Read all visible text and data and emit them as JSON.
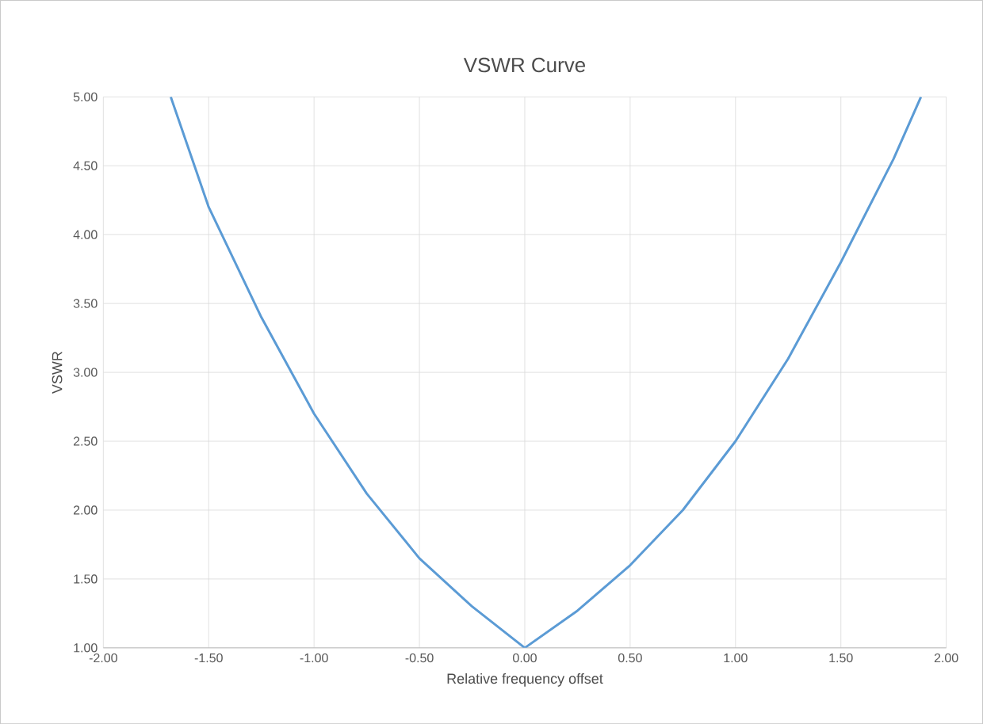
{
  "chart_data": {
    "type": "line",
    "title": "VSWR Curve",
    "xlabel": "Relative frequency offset",
    "ylabel": "VSWR",
    "xlim": [
      -2,
      2
    ],
    "xticks": [
      {
        "value": -2,
        "label": "-2.00"
      },
      {
        "value": -1.5,
        "label": "-1.50"
      },
      {
        "value": -1,
        "label": "-1.00"
      },
      {
        "value": -0.5,
        "label": "-0.50"
      },
      {
        "value": 0,
        "label": "0.00"
      },
      {
        "value": 0.5,
        "label": "0.50"
      },
      {
        "value": 1,
        "label": "1.00"
      },
      {
        "value": 1.5,
        "label": "1.50"
      },
      {
        "value": 2,
        "label": "2.00"
      }
    ],
    "ylim": [
      1,
      5
    ],
    "yticks": [
      {
        "value": 1,
        "label": "1.00"
      },
      {
        "value": 1.5,
        "label": "1.50"
      },
      {
        "value": 2,
        "label": "2.00"
      },
      {
        "value": 2.5,
        "label": "2.50"
      },
      {
        "value": 3,
        "label": "3.00"
      },
      {
        "value": 3.5,
        "label": "3.50"
      },
      {
        "value": 4,
        "label": "4.00"
      },
      {
        "value": 4.5,
        "label": "4.50"
      },
      {
        "value": 5,
        "label": "5.00"
      }
    ],
    "grid": true,
    "marker": "none",
    "line_style": "solid",
    "x": [
      -1.68,
      -1.5,
      -1.25,
      -1.0,
      -0.75,
      -0.5,
      -0.25,
      0,
      0.25,
      0.5,
      0.75,
      1.0,
      1.25,
      1.5,
      1.75,
      1.88
    ],
    "series": [
      {
        "color": "#5b9bd5",
        "values": [
          5.0,
          4.2,
          3.4,
          2.7,
          2.12,
          1.65,
          1.3,
          1.0,
          1.27,
          1.6,
          2.0,
          2.5,
          3.1,
          3.8,
          4.55,
          5.0
        ]
      }
    ]
  }
}
